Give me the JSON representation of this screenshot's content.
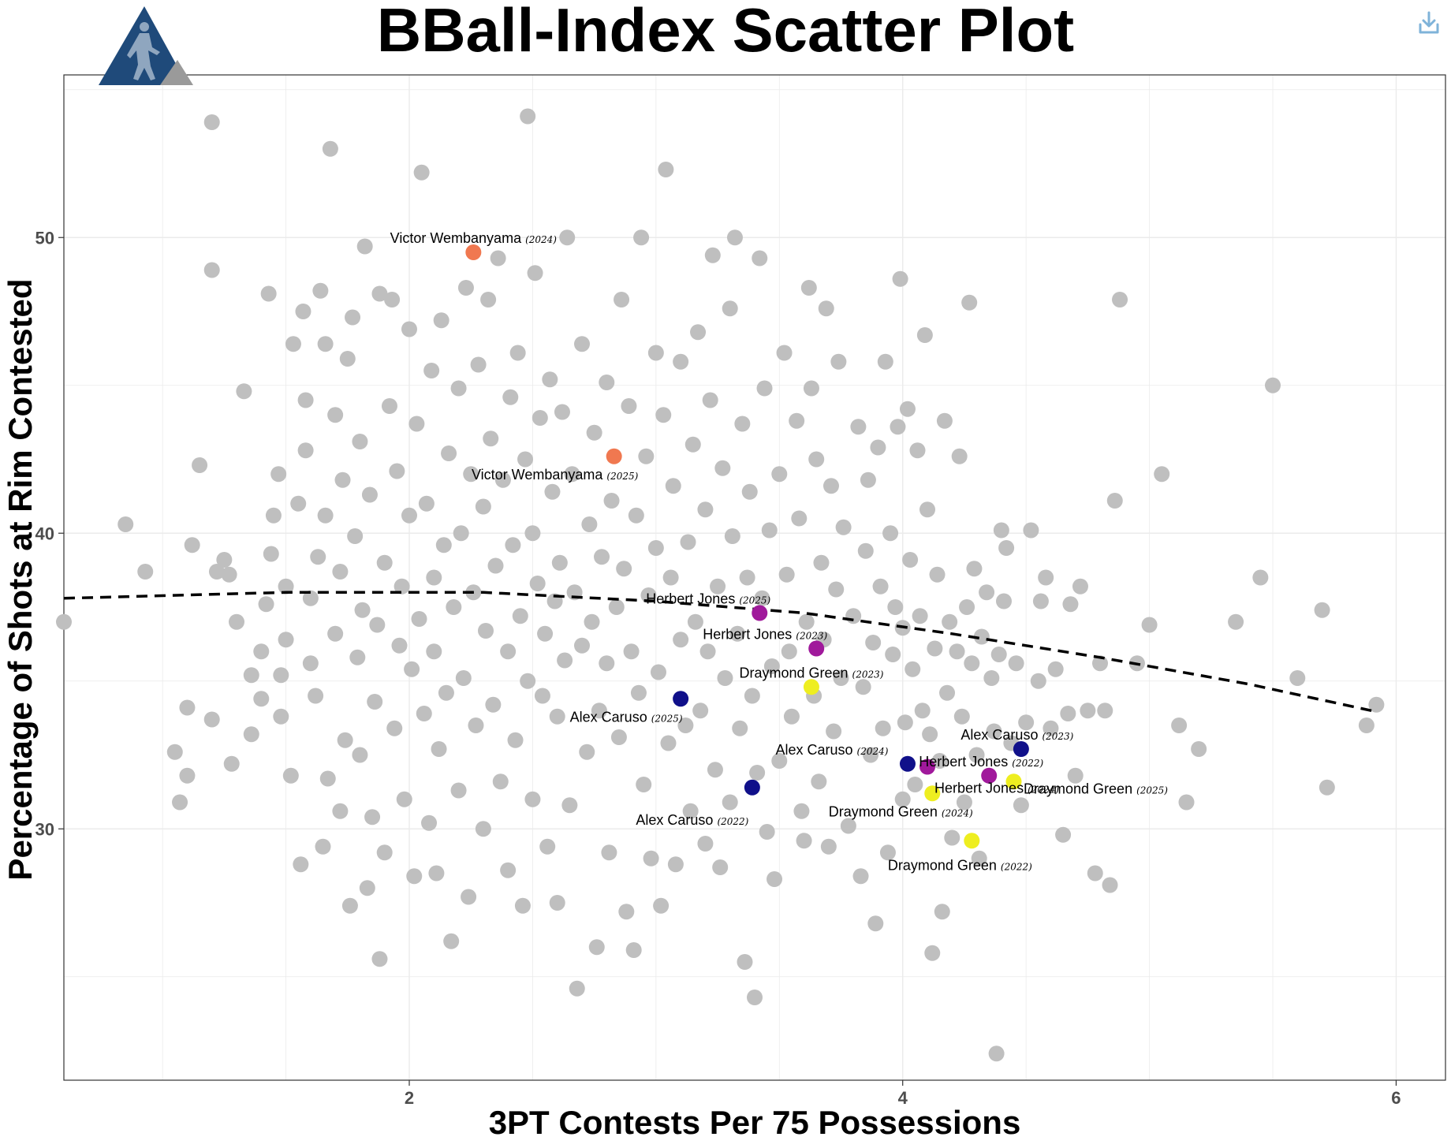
{
  "title": "BBall-Index Scatter Plot",
  "colors": {
    "background_points": "#bfbfbf",
    "grid": "#ebebeb",
    "logo_blue": "#1f4a7a",
    "logo_gray": "#9a9a9a",
    "download_icon": "#7fb3d9"
  },
  "icons": {
    "logo": "bball-index-logo",
    "download": "download-icon"
  },
  "chart_data": {
    "type": "scatter",
    "title": "BBall-Index Scatter Plot",
    "xlabel": "3PT Contests Per 75 Possessions",
    "ylabel": "Percentage of Shots at Rim Contested",
    "xlim": [
      0.6,
      6.2
    ],
    "ylim": [
      21.5,
      55.5
    ],
    "xticks": [
      2,
      4,
      6
    ],
    "yticks": [
      30,
      40,
      50
    ],
    "grid": true,
    "trendline": {
      "style": "dashed",
      "points": [
        [
          0.6,
          37.8
        ],
        [
          1.5,
          38.0
        ],
        [
          2.3,
          38.0
        ],
        [
          3.0,
          37.7
        ],
        [
          3.6,
          37.3
        ],
        [
          4.2,
          36.6
        ],
        [
          4.8,
          35.8
        ],
        [
          5.4,
          34.9
        ],
        [
          5.9,
          34.0
        ]
      ]
    },
    "highlighted": [
      {
        "player": "Victor Wembanyama",
        "season": "(2024)",
        "x": 2.26,
        "y": 49.5,
        "color": "#f07850"
      },
      {
        "player": "Victor Wembanyama",
        "season": "(2025)",
        "x": 2.83,
        "y": 42.6,
        "color": "#f07850"
      },
      {
        "player": "Herbert Jones",
        "season": "(2025)",
        "x": 3.42,
        "y": 37.3,
        "color": "#a0199b"
      },
      {
        "player": "Herbert Jones",
        "season": "(2023)",
        "x": 3.65,
        "y": 36.1,
        "color": "#a0199b"
      },
      {
        "player": "Herbert Jones",
        "season": "(2022)",
        "x": 4.35,
        "y": 31.8,
        "color": "#a0199b"
      },
      {
        "player": "Herbert Jones",
        "season": "(2024)",
        "x": 4.1,
        "y": 32.1,
        "color": "#a0199b"
      },
      {
        "player": "Draymond Green",
        "season": "(2023)",
        "x": 3.63,
        "y": 34.8,
        "color": "#eeee20"
      },
      {
        "player": "Draymond Green",
        "season": "(2025)",
        "x": 4.45,
        "y": 31.6,
        "color": "#eeee20"
      },
      {
        "player": "Draymond Green",
        "season": "(2024)",
        "x": 4.12,
        "y": 31.2,
        "color": "#eeee20"
      },
      {
        "player": "Draymond Green",
        "season": "(2022)",
        "x": 4.28,
        "y": 29.6,
        "color": "#eeee20"
      },
      {
        "player": "Alex Caruso",
        "season": "(2025)",
        "x": 3.1,
        "y": 34.4,
        "color": "#10108a"
      },
      {
        "player": "Alex Caruso",
        "season": "(2023)",
        "x": 4.48,
        "y": 32.7,
        "color": "#10108a"
      },
      {
        "player": "Alex Caruso",
        "season": "(2024)",
        "x": 4.02,
        "y": 32.2,
        "color": "#10108a"
      },
      {
        "player": "Alex Caruso",
        "season": "(2022)",
        "x": 3.39,
        "y": 31.4,
        "color": "#10108a"
      }
    ],
    "background_points_approx": [
      [
        0.6,
        37.0
      ],
      [
        0.85,
        40.3
      ],
      [
        0.93,
        38.7
      ],
      [
        1.05,
        32.6
      ],
      [
        1.07,
        30.9
      ],
      [
        1.1,
        31.8
      ],
      [
        1.1,
        34.1
      ],
      [
        1.12,
        39.6
      ],
      [
        1.15,
        42.3
      ],
      [
        1.2,
        33.7
      ],
      [
        1.22,
        38.7
      ],
      [
        1.25,
        39.1
      ],
      [
        1.2,
        48.9
      ],
      [
        1.2,
        53.9
      ],
      [
        1.27,
        38.6
      ],
      [
        1.28,
        32.2
      ],
      [
        1.3,
        37.0
      ],
      [
        1.33,
        44.8
      ],
      [
        1.36,
        35.2
      ],
      [
        1.36,
        33.2
      ],
      [
        1.4,
        36.0
      ],
      [
        1.4,
        34.4
      ],
      [
        1.42,
        37.6
      ],
      [
        1.43,
        48.1
      ],
      [
        1.44,
        39.3
      ],
      [
        1.45,
        40.6
      ],
      [
        1.47,
        42.0
      ],
      [
        1.48,
        33.8
      ],
      [
        1.48,
        35.2
      ],
      [
        1.5,
        36.4
      ],
      [
        1.5,
        38.2
      ],
      [
        1.52,
        31.8
      ],
      [
        1.53,
        46.4
      ],
      [
        1.55,
        41.0
      ],
      [
        1.56,
        28.8
      ],
      [
        1.57,
        47.5
      ],
      [
        1.58,
        44.5
      ],
      [
        1.58,
        42.8
      ],
      [
        1.6,
        37.8
      ],
      [
        1.6,
        35.6
      ],
      [
        1.62,
        34.5
      ],
      [
        1.63,
        39.2
      ],
      [
        1.64,
        48.2
      ],
      [
        1.65,
        29.4
      ],
      [
        1.66,
        40.6
      ],
      [
        1.66,
        46.4
      ],
      [
        1.67,
        31.7
      ],
      [
        1.68,
        53.0
      ],
      [
        1.7,
        44.0
      ],
      [
        1.7,
        36.6
      ],
      [
        1.72,
        38.7
      ],
      [
        1.72,
        30.6
      ],
      [
        1.73,
        41.8
      ],
      [
        1.74,
        33.0
      ],
      [
        1.75,
        45.9
      ],
      [
        1.76,
        27.4
      ],
      [
        1.77,
        47.3
      ],
      [
        1.78,
        39.9
      ],
      [
        1.79,
        35.8
      ],
      [
        1.8,
        43.1
      ],
      [
        1.8,
        32.5
      ],
      [
        1.81,
        37.4
      ],
      [
        1.82,
        49.7
      ],
      [
        1.83,
        28.0
      ],
      [
        1.84,
        41.3
      ],
      [
        1.85,
        30.4
      ],
      [
        1.86,
        34.3
      ],
      [
        1.87,
        36.9
      ],
      [
        1.88,
        48.1
      ],
      [
        1.88,
        25.6
      ],
      [
        1.9,
        39.0
      ],
      [
        1.9,
        29.2
      ],
      [
        1.92,
        44.3
      ],
      [
        1.93,
        47.9
      ],
      [
        1.94,
        33.4
      ],
      [
        1.95,
        42.1
      ],
      [
        1.96,
        36.2
      ],
      [
        1.97,
        38.2
      ],
      [
        1.98,
        31.0
      ],
      [
        2.0,
        40.6
      ],
      [
        2.0,
        46.9
      ],
      [
        2.01,
        35.4
      ],
      [
        2.02,
        28.4
      ],
      [
        2.03,
        43.7
      ],
      [
        2.04,
        37.1
      ],
      [
        2.05,
        52.2
      ],
      [
        2.06,
        33.9
      ],
      [
        2.07,
        41.0
      ],
      [
        2.08,
        30.2
      ],
      [
        2.09,
        45.5
      ],
      [
        2.1,
        38.5
      ],
      [
        2.1,
        36.0
      ],
      [
        2.11,
        28.5
      ],
      [
        2.12,
        32.7
      ],
      [
        2.13,
        47.2
      ],
      [
        2.14,
        39.6
      ],
      [
        2.15,
        34.6
      ],
      [
        2.16,
        42.7
      ],
      [
        2.17,
        26.2
      ],
      [
        2.18,
        37.5
      ],
      [
        2.2,
        44.9
      ],
      [
        2.2,
        31.3
      ],
      [
        2.21,
        40.0
      ],
      [
        2.22,
        35.1
      ],
      [
        2.23,
        48.3
      ],
      [
        2.24,
        27.7
      ],
      [
        2.25,
        42.0
      ],
      [
        2.26,
        38.0
      ],
      [
        2.27,
        33.5
      ],
      [
        2.28,
        45.7
      ],
      [
        2.3,
        30.0
      ],
      [
        2.3,
        40.9
      ],
      [
        2.31,
        36.7
      ],
      [
        2.32,
        47.9
      ],
      [
        2.33,
        43.2
      ],
      [
        2.34,
        34.2
      ],
      [
        2.35,
        38.9
      ],
      [
        2.36,
        49.3
      ],
      [
        2.37,
        31.6
      ],
      [
        2.38,
        41.8
      ],
      [
        2.4,
        36.0
      ],
      [
        2.4,
        28.6
      ],
      [
        2.41,
        44.6
      ],
      [
        2.42,
        39.6
      ],
      [
        2.43,
        33.0
      ],
      [
        2.44,
        46.1
      ],
      [
        2.45,
        37.2
      ],
      [
        2.46,
        27.4
      ],
      [
        2.47,
        42.5
      ],
      [
        2.48,
        35.0
      ],
      [
        2.48,
        54.1
      ],
      [
        2.5,
        40.0
      ],
      [
        2.5,
        31.0
      ],
      [
        2.51,
        48.8
      ],
      [
        2.52,
        38.3
      ],
      [
        2.53,
        43.9
      ],
      [
        2.54,
        34.5
      ],
      [
        2.55,
        36.6
      ],
      [
        2.56,
        29.4
      ],
      [
        2.57,
        45.2
      ],
      [
        2.58,
        41.4
      ],
      [
        2.59,
        37.7
      ],
      [
        2.6,
        33.8
      ],
      [
        2.6,
        27.5
      ],
      [
        2.61,
        39.0
      ],
      [
        2.62,
        44.1
      ],
      [
        2.63,
        35.7
      ],
      [
        2.64,
        50.0
      ],
      [
        2.65,
        30.8
      ],
      [
        2.66,
        42.0
      ],
      [
        2.67,
        38.0
      ],
      [
        2.68,
        24.6
      ],
      [
        2.7,
        36.2
      ],
      [
        2.7,
        46.4
      ],
      [
        2.72,
        32.6
      ],
      [
        2.73,
        40.3
      ],
      [
        2.74,
        37.0
      ],
      [
        2.75,
        43.4
      ],
      [
        2.76,
        26.0
      ],
      [
        2.77,
        34.0
      ],
      [
        2.78,
        39.2
      ],
      [
        2.8,
        35.6
      ],
      [
        2.8,
        45.1
      ],
      [
        2.81,
        29.2
      ],
      [
        2.82,
        41.1
      ],
      [
        2.84,
        37.5
      ],
      [
        2.85,
        33.1
      ],
      [
        2.86,
        47.9
      ],
      [
        2.87,
        38.8
      ],
      [
        2.88,
        27.2
      ],
      [
        2.89,
        44.3
      ],
      [
        2.9,
        36.0
      ],
      [
        2.91,
        25.9
      ],
      [
        2.92,
        40.6
      ],
      [
        2.93,
        34.6
      ],
      [
        2.94,
        50.0
      ],
      [
        2.95,
        31.5
      ],
      [
        2.96,
        42.6
      ],
      [
        2.97,
        37.9
      ],
      [
        2.98,
        29.0
      ],
      [
        3.0,
        39.5
      ],
      [
        3.0,
        46.1
      ],
      [
        3.01,
        35.3
      ],
      [
        3.02,
        27.4
      ],
      [
        3.03,
        44.0
      ],
      [
        3.04,
        52.3
      ],
      [
        3.05,
        32.9
      ],
      [
        3.06,
        38.5
      ],
      [
        3.07,
        41.6
      ],
      [
        3.08,
        28.8
      ],
      [
        3.1,
        36.4
      ],
      [
        3.1,
        45.8
      ],
      [
        3.12,
        33.5
      ],
      [
        3.13,
        39.7
      ],
      [
        3.14,
        30.6
      ],
      [
        3.15,
        43.0
      ],
      [
        3.16,
        37.0
      ],
      [
        3.17,
        46.8
      ],
      [
        3.18,
        34.0
      ],
      [
        3.2,
        29.5
      ],
      [
        3.2,
        40.8
      ],
      [
        3.21,
        36.0
      ],
      [
        3.22,
        44.5
      ],
      [
        3.23,
        49.4
      ],
      [
        3.24,
        32.0
      ],
      [
        3.25,
        38.2
      ],
      [
        3.26,
        28.7
      ],
      [
        3.27,
        42.2
      ],
      [
        3.28,
        35.1
      ],
      [
        3.3,
        47.6
      ],
      [
        3.3,
        30.9
      ],
      [
        3.31,
        39.9
      ],
      [
        3.32,
        50.0
      ],
      [
        3.33,
        36.6
      ],
      [
        3.34,
        33.4
      ],
      [
        3.35,
        43.7
      ],
      [
        3.36,
        25.5
      ],
      [
        3.37,
        38.5
      ],
      [
        3.38,
        41.4
      ],
      [
        3.39,
        34.5
      ],
      [
        3.4,
        24.3
      ],
      [
        3.41,
        31.9
      ],
      [
        3.42,
        49.3
      ],
      [
        3.43,
        37.8
      ],
      [
        3.44,
        44.9
      ],
      [
        3.45,
        29.9
      ],
      [
        3.46,
        40.1
      ],
      [
        3.47,
        35.5
      ],
      [
        3.48,
        28.3
      ],
      [
        3.5,
        42.0
      ],
      [
        3.5,
        32.3
      ],
      [
        3.52,
        46.1
      ],
      [
        3.53,
        38.6
      ],
      [
        3.54,
        36.0
      ],
      [
        3.55,
        33.8
      ],
      [
        3.57,
        43.8
      ],
      [
        3.58,
        40.5
      ],
      [
        3.59,
        30.6
      ],
      [
        3.6,
        29.6
      ],
      [
        3.61,
        37.0
      ],
      [
        3.62,
        48.3
      ],
      [
        3.63,
        44.9
      ],
      [
        3.64,
        34.5
      ],
      [
        3.65,
        42.5
      ],
      [
        3.66,
        31.6
      ],
      [
        3.67,
        39.0
      ],
      [
        3.68,
        36.4
      ],
      [
        3.69,
        47.6
      ],
      [
        3.7,
        29.4
      ],
      [
        3.71,
        41.6
      ],
      [
        3.72,
        33.3
      ],
      [
        3.73,
        38.1
      ],
      [
        3.74,
        45.8
      ],
      [
        3.75,
        35.1
      ],
      [
        3.76,
        40.2
      ],
      [
        3.78,
        30.1
      ],
      [
        3.8,
        37.2
      ],
      [
        3.82,
        43.6
      ],
      [
        3.83,
        28.4
      ],
      [
        3.84,
        34.8
      ],
      [
        3.85,
        39.4
      ],
      [
        3.86,
        41.8
      ],
      [
        3.87,
        32.5
      ],
      [
        3.88,
        36.3
      ],
      [
        3.89,
        26.8
      ],
      [
        3.9,
        42.9
      ],
      [
        3.91,
        38.2
      ],
      [
        3.92,
        33.4
      ],
      [
        3.93,
        45.8
      ],
      [
        3.94,
        29.2
      ],
      [
        3.95,
        40.0
      ],
      [
        3.96,
        35.9
      ],
      [
        3.97,
        37.5
      ],
      [
        3.98,
        43.6
      ],
      [
        3.99,
        48.6
      ],
      [
        4.0,
        31.0
      ],
      [
        4.0,
        36.8
      ],
      [
        4.01,
        33.6
      ],
      [
        4.02,
        44.2
      ],
      [
        4.03,
        39.1
      ],
      [
        4.04,
        35.4
      ],
      [
        4.05,
        31.5
      ],
      [
        4.06,
        42.8
      ],
      [
        4.07,
        37.2
      ],
      [
        4.08,
        34.0
      ],
      [
        4.09,
        46.7
      ],
      [
        4.1,
        40.8
      ],
      [
        4.11,
        33.2
      ],
      [
        4.12,
        25.8
      ],
      [
        4.13,
        36.1
      ],
      [
        4.14,
        38.6
      ],
      [
        4.15,
        32.3
      ],
      [
        4.16,
        27.2
      ],
      [
        4.17,
        43.8
      ],
      [
        4.18,
        34.6
      ],
      [
        4.19,
        37.0
      ],
      [
        4.2,
        29.7
      ],
      [
        4.22,
        36.0
      ],
      [
        4.23,
        42.6
      ],
      [
        4.24,
        33.8
      ],
      [
        4.25,
        30.9
      ],
      [
        4.26,
        37.5
      ],
      [
        4.27,
        47.8
      ],
      [
        4.28,
        35.6
      ],
      [
        4.29,
        38.8
      ],
      [
        4.3,
        32.5
      ],
      [
        4.31,
        29.0
      ],
      [
        4.32,
        36.5
      ],
      [
        4.34,
        38.0
      ],
      [
        4.36,
        35.1
      ],
      [
        4.37,
        33.3
      ],
      [
        4.38,
        22.4
      ],
      [
        4.39,
        35.9
      ],
      [
        4.4,
        40.1
      ],
      [
        4.41,
        37.7
      ],
      [
        4.42,
        39.5
      ],
      [
        4.44,
        32.9
      ],
      [
        4.46,
        35.6
      ],
      [
        4.48,
        30.8
      ],
      [
        4.5,
        33.6
      ],
      [
        4.52,
        40.1
      ],
      [
        4.55,
        35.0
      ],
      [
        4.56,
        37.7
      ],
      [
        4.58,
        38.5
      ],
      [
        4.6,
        33.4
      ],
      [
        4.62,
        35.4
      ],
      [
        4.65,
        29.8
      ],
      [
        4.67,
        33.9
      ],
      [
        4.68,
        37.6
      ],
      [
        4.7,
        31.8
      ],
      [
        4.72,
        38.2
      ],
      [
        4.75,
        34.0
      ],
      [
        4.78,
        28.5
      ],
      [
        4.8,
        35.6
      ],
      [
        4.82,
        34.0
      ],
      [
        4.84,
        28.1
      ],
      [
        4.86,
        41.1
      ],
      [
        4.88,
        47.9
      ],
      [
        4.95,
        35.6
      ],
      [
        5.0,
        36.9
      ],
      [
        5.05,
        42.0
      ],
      [
        5.12,
        33.5
      ],
      [
        5.15,
        30.9
      ],
      [
        5.2,
        32.7
      ],
      [
        5.35,
        37.0
      ],
      [
        5.45,
        38.5
      ],
      [
        5.5,
        45.0
      ],
      [
        5.6,
        35.1
      ],
      [
        5.7,
        37.4
      ],
      [
        5.72,
        31.4
      ],
      [
        5.88,
        33.5
      ],
      [
        5.92,
        34.2
      ]
    ]
  }
}
